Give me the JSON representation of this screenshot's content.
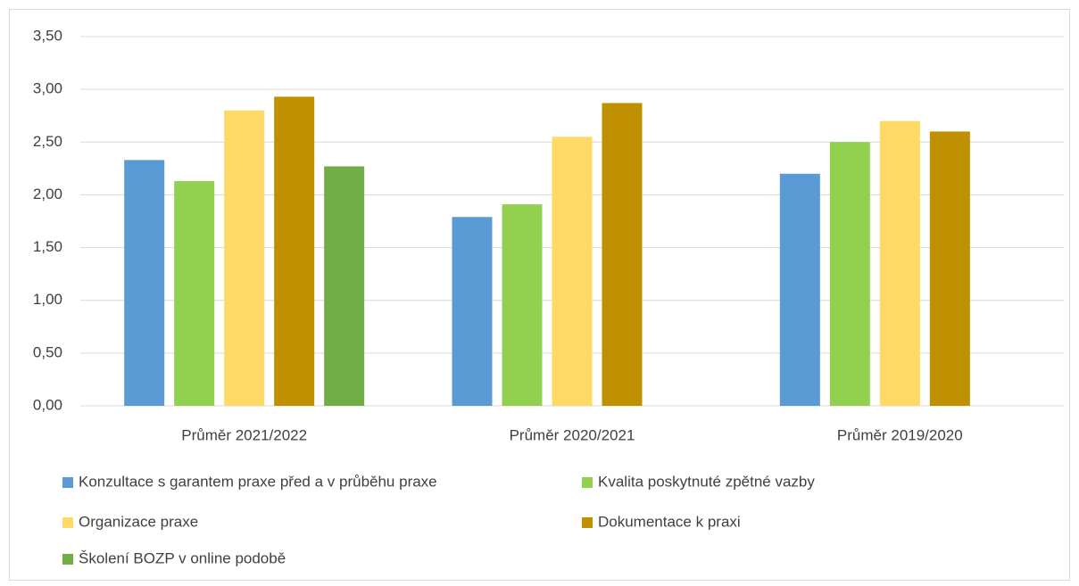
{
  "chart_data": {
    "type": "bar",
    "categories": [
      "Průměr 2021/2022",
      "Průměr 2020/2021",
      "Průměr 2019/2020"
    ],
    "series": [
      {
        "name": "Konzultace s garantem praxe před a v průběhu praxe",
        "color": "#5b9bd5",
        "values": [
          2.33,
          1.79,
          2.2
        ]
      },
      {
        "name": "Kvalita poskytnuté zpětné vazby",
        "color": "#92d050",
        "values": [
          2.13,
          1.91,
          2.5
        ]
      },
      {
        "name": "Organizace praxe",
        "color": "#ffd966",
        "values": [
          2.8,
          2.55,
          2.7
        ]
      },
      {
        "name": "Dokumentace k praxi",
        "color": "#bf9000",
        "values": [
          2.93,
          2.87,
          2.6
        ]
      },
      {
        "name": "Školení BOZP v online podobě",
        "color": "#70ad47",
        "values": [
          2.27,
          null,
          null
        ]
      }
    ],
    "ylim": [
      0,
      3.5
    ],
    "yticks": [
      {
        "value": 0,
        "label": "0,00"
      },
      {
        "value": 0.5,
        "label": "0,50"
      },
      {
        "value": 1,
        "label": "1,00"
      },
      {
        "value": 1.5,
        "label": "1,50"
      },
      {
        "value": 2,
        "label": "2,00"
      },
      {
        "value": 2.5,
        "label": "2,50"
      },
      {
        "value": 3,
        "label": "3,00"
      },
      {
        "value": 3.5,
        "label": "3,50"
      }
    ],
    "grid": true
  }
}
